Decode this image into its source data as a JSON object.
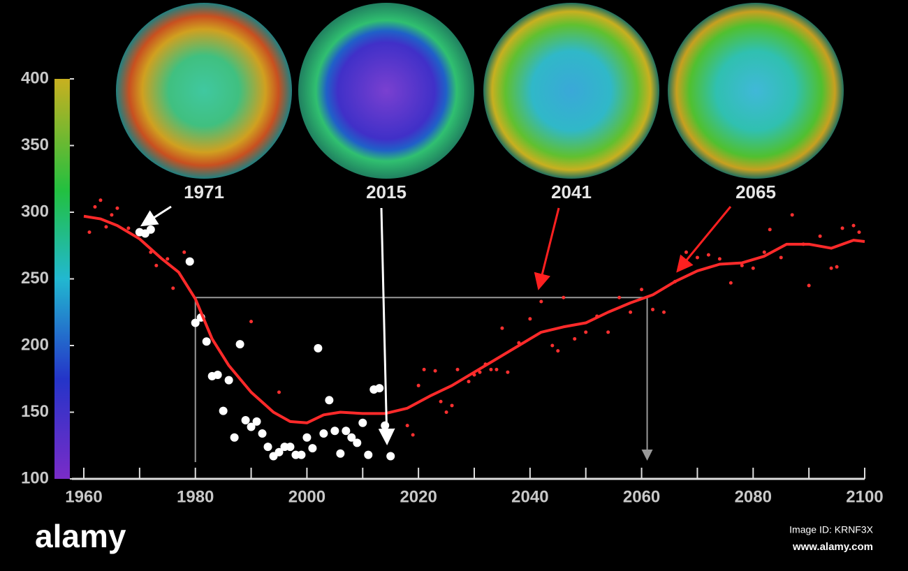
{
  "chart_data": {
    "type": "scatter",
    "xlim": [
      1960,
      2100
    ],
    "ylim": [
      100,
      400
    ],
    "xticks": [
      1960,
      1980,
      2000,
      2020,
      2040,
      2060,
      2080,
      2100
    ],
    "xminorticks": [
      1970,
      1990,
      2010,
      2030,
      2050,
      2070,
      2090
    ],
    "yticks": [
      100,
      150,
      200,
      250,
      300,
      350,
      400
    ],
    "guide_x": [
      1980,
      2061
    ],
    "guide_y": 236,
    "globes": [
      "1971",
      "2015",
      "2041",
      "2065"
    ],
    "annotations": [
      "alamy",
      "Image ID: KRNF3X",
      "www.alamy.com"
    ],
    "series": [
      {
        "style": "line",
        "color": "#ff2a2a",
        "x": [
          1960,
          1963,
          1966,
          1970,
          1974,
          1977,
          1980,
          1983,
          1986,
          1990,
          1994,
          1997,
          2000,
          2003,
          2006,
          2010,
          2014,
          2018,
          2022,
          2026,
          2030,
          2034,
          2038,
          2042,
          2046,
          2050,
          2054,
          2058,
          2062,
          2066,
          2070,
          2074,
          2078,
          2082,
          2086,
          2090,
          2094,
          2098,
          2100
        ],
        "values": [
          297,
          295,
          290,
          280,
          265,
          255,
          235,
          205,
          185,
          165,
          150,
          143,
          142,
          148,
          150,
          149,
          149,
          153,
          162,
          170,
          180,
          190,
          200,
          210,
          214,
          217,
          225,
          232,
          238,
          248,
          256,
          261,
          262,
          267,
          276,
          276,
          273,
          279,
          278
        ]
      },
      {
        "style": "point",
        "color": "#ff3030",
        "x": [
          1961,
          1962,
          1963,
          1964,
          1965,
          1966,
          1968,
          1972,
          1973,
          1975,
          1976,
          1978,
          1990,
          1995,
          2018,
          2019,
          2020,
          2021,
          2023,
          2024,
          2025,
          2026,
          2027,
          2029,
          2030,
          2031,
          2032,
          2033,
          2034,
          2035,
          2036,
          2038,
          2040,
          2042,
          2044,
          2045,
          2046,
          2048,
          2050,
          2052,
          2054,
          2056,
          2058,
          2060,
          2062,
          2064,
          2066,
          2068,
          2070,
          2072,
          2074,
          2076,
          2078,
          2080,
          2082,
          2083,
          2085,
          2087,
          2089,
          2090,
          2092,
          2094,
          2095,
          2096,
          2098,
          2099
        ],
        "values": [
          285,
          304,
          309,
          289,
          298,
          303,
          288,
          270,
          260,
          265,
          243,
          270,
          218,
          165,
          140,
          133,
          170,
          182,
          181,
          158,
          150,
          155,
          182,
          173,
          178,
          180,
          186,
          182,
          182,
          213,
          180,
          202,
          220,
          233,
          200,
          196,
          236,
          205,
          210,
          222,
          210,
          236,
          225,
          242,
          227,
          225,
          248,
          270,
          266,
          268,
          265,
          247,
          260,
          258,
          270,
          287,
          266,
          298,
          276,
          245,
          282,
          258,
          259,
          288,
          290,
          285
        ]
      },
      {
        "style": "point",
        "color": "#ffffff",
        "x": [
          1970,
          1971,
          1972,
          1979,
          1980,
          1981,
          1982,
          1983,
          1984,
          1985,
          1986,
          1987,
          1988,
          1989,
          1990,
          1991,
          1992,
          1993,
          1994,
          1995,
          1996,
          1997,
          1998,
          1999,
          2000,
          2001,
          2002,
          2003,
          2004,
          2005,
          2006,
          2007,
          2008,
          2009,
          2010,
          2011,
          2012,
          2013,
          2014,
          2015
        ],
        "values": [
          285,
          284,
          287,
          263,
          217,
          221,
          203,
          177,
          178,
          151,
          174,
          131,
          201,
          144,
          139,
          143,
          134,
          124,
          117,
          120,
          124,
          124,
          118,
          118,
          131,
          123,
          198,
          134,
          159,
          136,
          119,
          136,
          131,
          127,
          142,
          118,
          167,
          168,
          140,
          117
        ]
      }
    ]
  }
}
